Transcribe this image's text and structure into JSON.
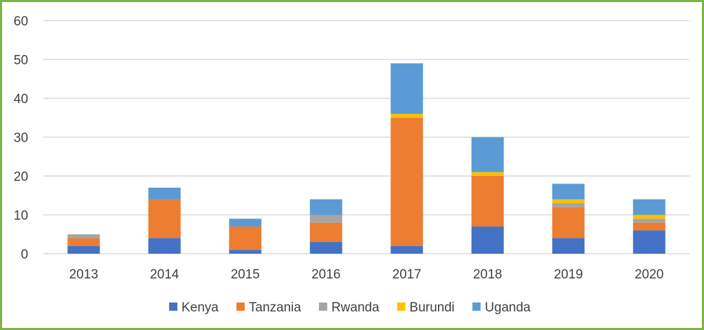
{
  "chart_data": {
    "type": "bar",
    "stacked": true,
    "title": "",
    "xlabel": "",
    "ylabel": "",
    "ylim": [
      0,
      60
    ],
    "yticks": [
      0,
      10,
      20,
      30,
      40,
      50,
      60
    ],
    "grid": true,
    "legend_position": "bottom",
    "categories": [
      "2013",
      "2014",
      "2015",
      "2016",
      "2017",
      "2018",
      "2019",
      "2020"
    ],
    "series": [
      {
        "name": "Kenya",
        "color": "#4472c4",
        "values": [
          2,
          4,
          1,
          3,
          2,
          7,
          4,
          6
        ]
      },
      {
        "name": "Tanzania",
        "color": "#ed7d31",
        "values": [
          2,
          10,
          6,
          5,
          33,
          13,
          8,
          2
        ]
      },
      {
        "name": "Rwanda",
        "color": "#a5a5a5",
        "values": [
          1,
          0,
          0,
          2,
          0,
          0,
          1,
          1
        ]
      },
      {
        "name": "Burundi",
        "color": "#ffc000",
        "values": [
          0,
          0,
          0,
          0,
          1,
          1,
          1,
          1
        ]
      },
      {
        "name": "Uganda",
        "color": "#5b9bd5",
        "values": [
          0,
          3,
          2,
          4,
          13,
          9,
          4,
          4
        ]
      }
    ],
    "frame_color": "#7cb342"
  }
}
